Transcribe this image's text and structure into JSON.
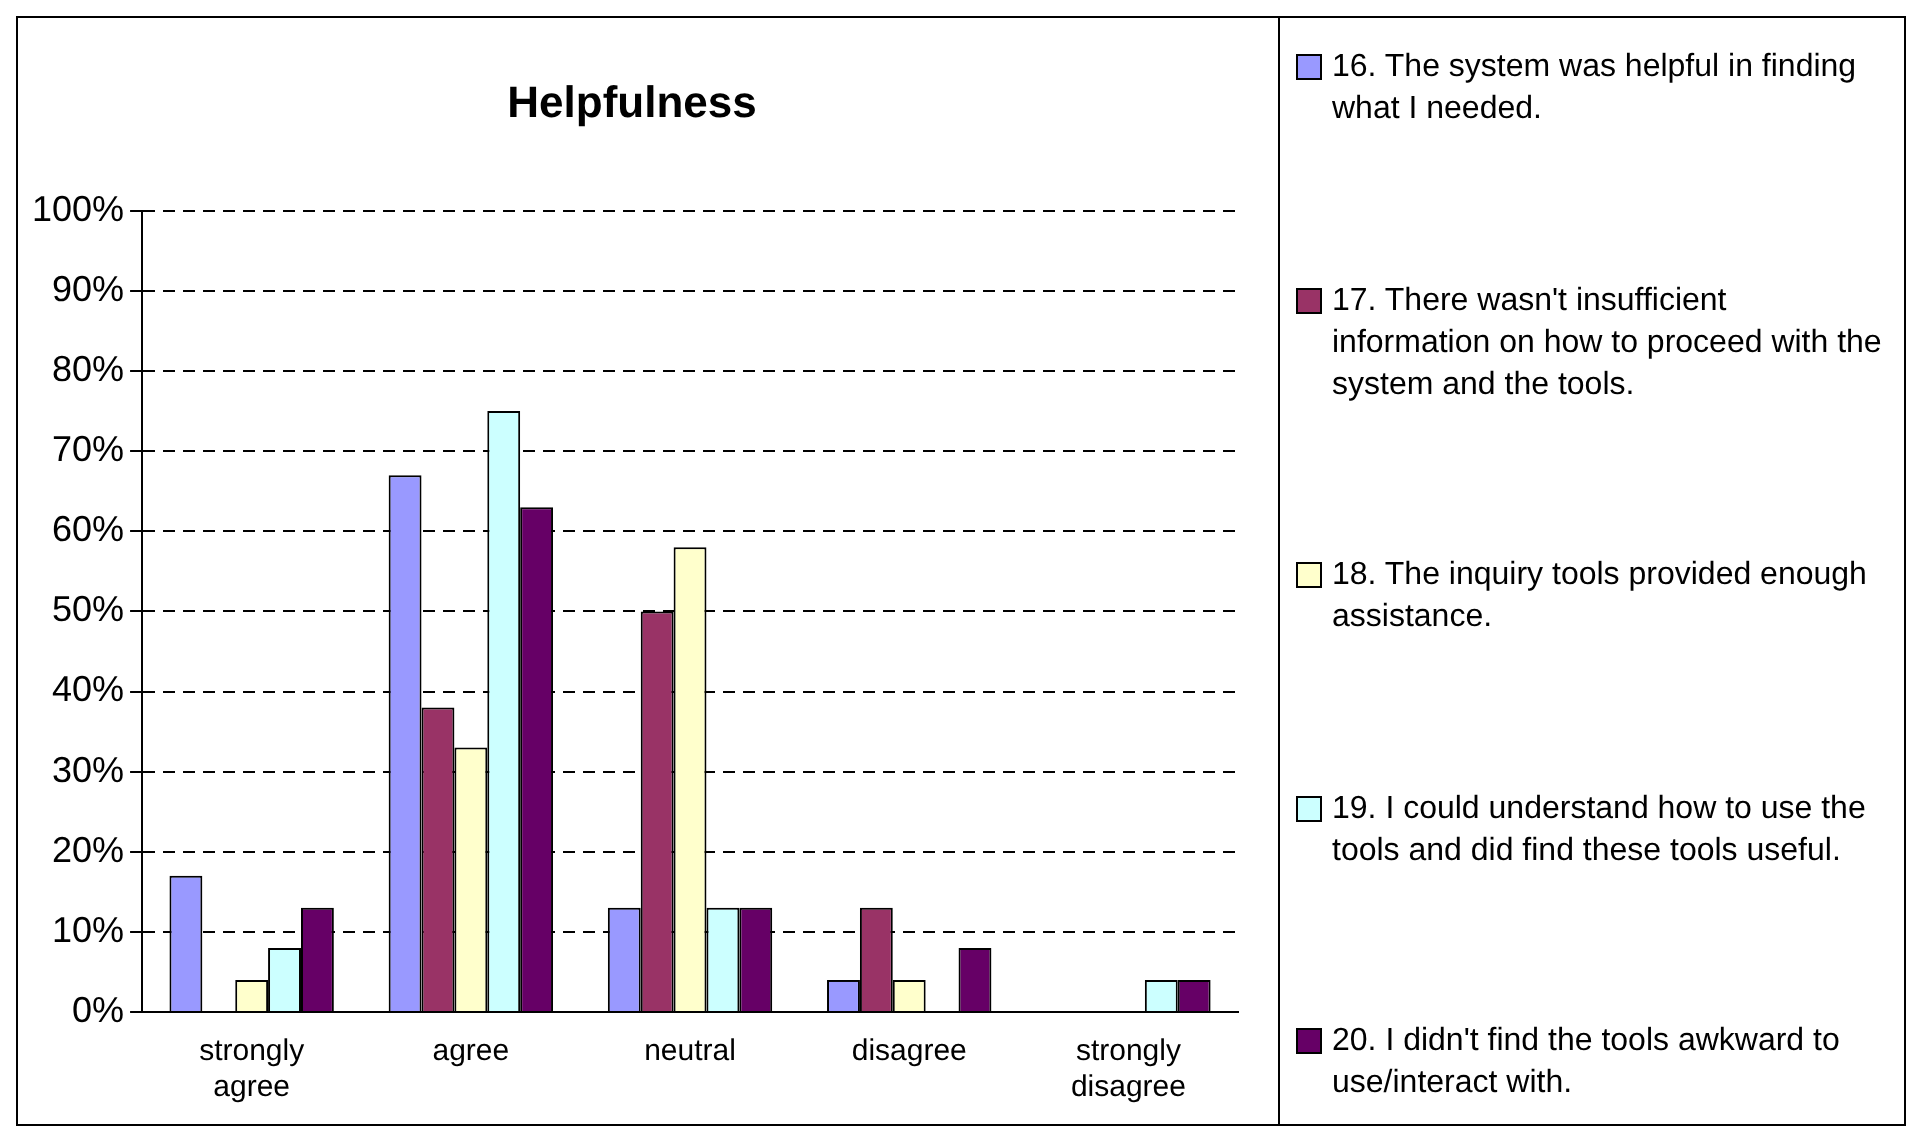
{
  "chart_data": {
    "type": "bar",
    "title": "Helpfulness",
    "categories": [
      "strongly agree",
      "agree",
      "neutral",
      "disagree",
      "strongly disagree"
    ],
    "series": [
      {
        "name": "16. The system was helpful in finding what I needed.",
        "color": "#9999ff",
        "values": [
          17,
          67,
          13,
          4,
          0
        ]
      },
      {
        "name": "17. There wasn't insufficient information on how to proceed with the system and the tools.",
        "color": "#993366",
        "values": [
          0,
          38,
          50,
          13,
          0
        ]
      },
      {
        "name": "18. The inquiry tools provided enough assistance.",
        "color": "#ffffcc",
        "values": [
          4,
          33,
          58,
          4,
          0
        ]
      },
      {
        "name": "19.  I could understand how to use the tools and did find these tools useful.",
        "color": "#ccffff",
        "values": [
          8,
          75,
          13,
          0,
          4
        ]
      },
      {
        "name": "20. I didn't find the tools awkward to use/interact with.",
        "color": "#660066",
        "values": [
          13,
          63,
          13,
          8,
          4
        ]
      }
    ],
    "ylim": [
      0,
      100
    ],
    "yticks": [
      {
        "value": 0,
        "label": "0%"
      },
      {
        "value": 10,
        "label": "10%"
      },
      {
        "value": 20,
        "label": "20%"
      },
      {
        "value": 30,
        "label": "30%"
      },
      {
        "value": 40,
        "label": "40%"
      },
      {
        "value": 50,
        "label": "50%"
      },
      {
        "value": 60,
        "label": "60%"
      },
      {
        "value": 70,
        "label": "70%"
      },
      {
        "value": 80,
        "label": "80%"
      },
      {
        "value": 90,
        "label": "90%"
      },
      {
        "value": 100,
        "label": "100%"
      }
    ],
    "grid": "y",
    "legend": "right"
  }
}
